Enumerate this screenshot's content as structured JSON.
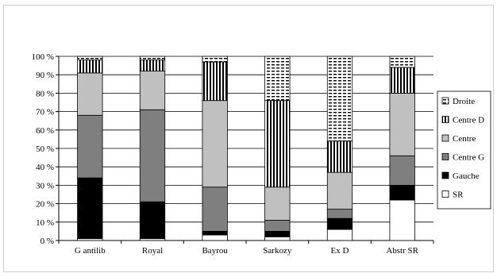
{
  "chart_data": {
    "type": "bar",
    "stacked": true,
    "percent": true,
    "categories": [
      "G antilib",
      "Royal",
      "Bayrou",
      "Sarkozy",
      "Ex D",
      "Abstr SR"
    ],
    "y_ticks": [
      "0 %",
      "10 %",
      "20 %",
      "30 %",
      "40 %",
      "50 %",
      "60 %",
      "70 %",
      "80 %",
      "90 %",
      "100 %"
    ],
    "ylim": [
      0,
      100
    ],
    "grid": true,
    "legend_position": "right",
    "series": [
      {
        "name": "SR",
        "pattern": "white",
        "color": "#ffffff",
        "values": [
          1,
          1,
          3,
          2,
          6,
          22
        ]
      },
      {
        "name": "Gauche",
        "pattern": "solid",
        "color": "#000000",
        "values": [
          33,
          20,
          2,
          3,
          6,
          8
        ]
      },
      {
        "name": "Centre G",
        "pattern": "solid",
        "color": "#7f7f7f",
        "values": [
          34,
          50,
          24,
          6,
          5,
          16
        ]
      },
      {
        "name": "Centre",
        "pattern": "solid",
        "color": "#c0c0c0",
        "values": [
          23,
          21,
          47,
          18,
          20,
          34
        ]
      },
      {
        "name": "Centre D",
        "pattern": "vlines",
        "color": "#000000",
        "values": [
          7,
          6,
          21,
          47,
          17,
          14
        ]
      },
      {
        "name": "Droite",
        "pattern": "dashes",
        "color": "#000000",
        "values": [
          2,
          2,
          3,
          24,
          46,
          6
        ]
      }
    ]
  }
}
